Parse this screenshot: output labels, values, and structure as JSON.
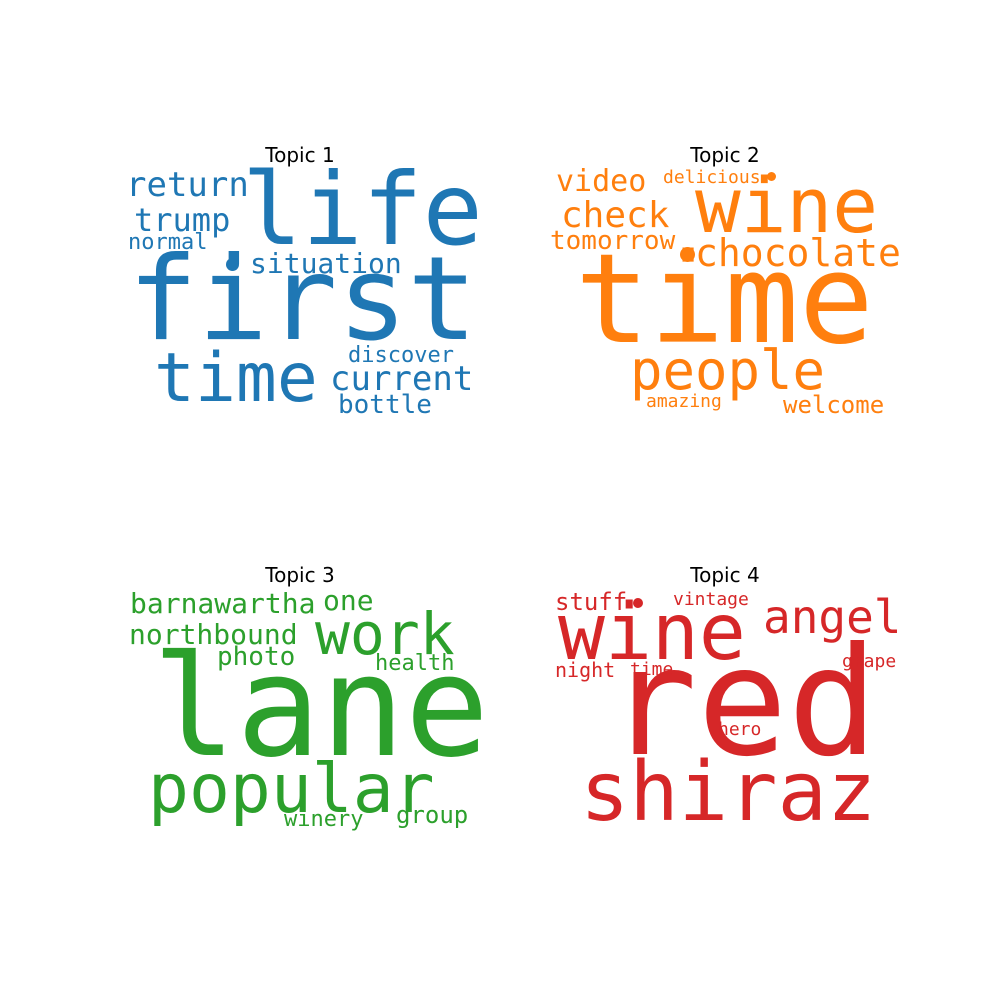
{
  "topics": [
    {
      "title": "Topic 1",
      "color": "#1f77b4",
      "words": [
        "first",
        "life",
        "time",
        "return",
        "situation",
        "trump",
        "normal",
        "current",
        "discover",
        "bottle"
      ]
    },
    {
      "title": "Topic 2",
      "color": "#ff7f0e",
      "words": [
        "time",
        "wine",
        "people",
        "chocolate",
        "check",
        "video",
        "tomorrow",
        "delicious",
        "welcome",
        "amazing"
      ]
    },
    {
      "title": "Topic 3",
      "color": "#2ca02c",
      "words": [
        "lane",
        "popular",
        "work",
        "barnawartha",
        "northbound",
        "one",
        "photo",
        "health",
        "group",
        "winery"
      ]
    },
    {
      "title": "Topic 4",
      "color": "#d62728",
      "words": [
        "red",
        "wine",
        "shiraz",
        "angel",
        "stuff",
        "vintage",
        "grape",
        "night",
        "time",
        "hero"
      ]
    }
  ]
}
